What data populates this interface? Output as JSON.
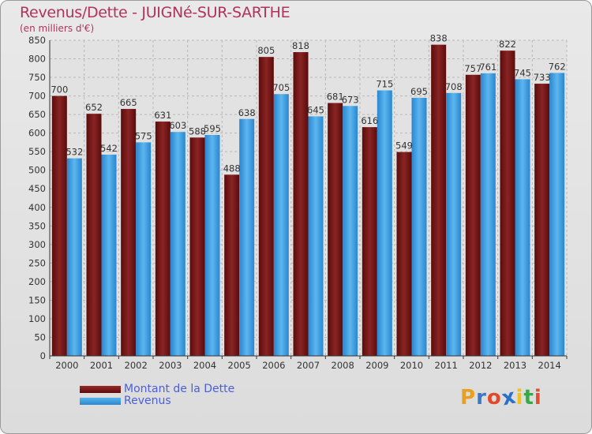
{
  "header": {
    "title": "Revenus/Dette - JUIGNé-SUR-SARTHE",
    "subtitle": "(en milliers d'€)"
  },
  "colors": {
    "series1": "#7a1515",
    "series2": "#3a9be0",
    "title": "#b0335a",
    "legend_text": "#4a5fd8"
  },
  "chart_data": {
    "type": "bar",
    "title": "Revenus/Dette - JUIGNé-SUR-SARTHE",
    "ylabel": "(en milliers d'€)",
    "xlabel": "",
    "ylim": [
      0,
      850
    ],
    "yticks": [
      0,
      50,
      100,
      150,
      200,
      250,
      300,
      350,
      400,
      450,
      500,
      550,
      600,
      650,
      700,
      750,
      800,
      850
    ],
    "grid": true,
    "legend_position": "bottom-left",
    "categories": [
      "2000",
      "2001",
      "2002",
      "2003",
      "2004",
      "2005",
      "2006",
      "2007",
      "2008",
      "2009",
      "2010",
      "2011",
      "2012",
      "2013",
      "2014"
    ],
    "series": [
      {
        "name": "Montant de la Dette",
        "values": [
          700,
          652,
          665,
          631,
          588,
          488,
          805,
          818,
          681,
          616,
          549,
          838,
          757,
          822,
          733
        ]
      },
      {
        "name": "Revenus",
        "values": [
          532,
          542,
          575,
          603,
          595,
          638,
          705,
          645,
          673,
          715,
          695,
          708,
          761,
          745,
          762
        ]
      }
    ]
  },
  "legend": {
    "items": [
      {
        "label": "Montant de la Dette"
      },
      {
        "label": "Revenus"
      }
    ]
  },
  "logo": {
    "text": "Proxiti",
    "letters": [
      "P",
      "r",
      "o",
      "x",
      "i",
      "t",
      "i"
    ],
    "letter_colors": [
      "#e8a020",
      "#3a78c8",
      "#e04a2a",
      "#2a6fc8",
      "#f0c020",
      "#3aa84a",
      "#e05030"
    ]
  }
}
